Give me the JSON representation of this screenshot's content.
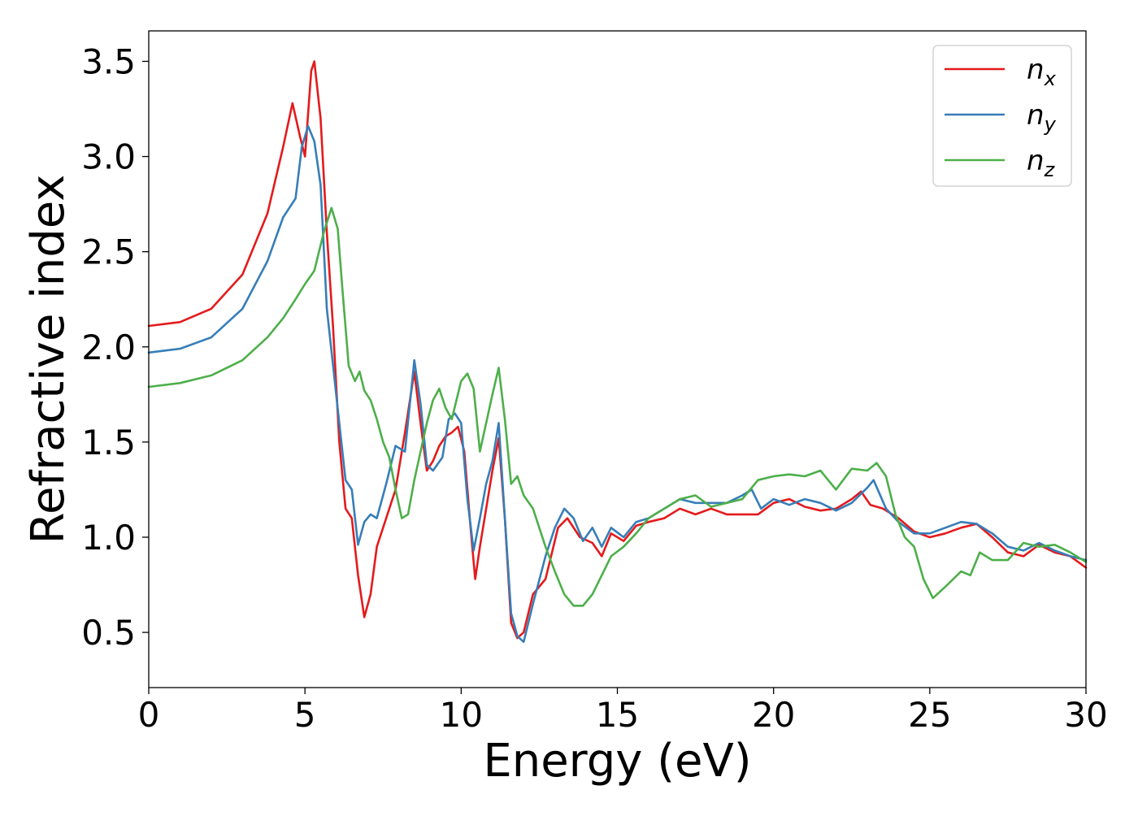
{
  "chart_data": {
    "type": "line",
    "title": "",
    "xlabel": "Energy (eV)",
    "ylabel": "Refractive index",
    "xlim": [
      0,
      30
    ],
    "ylim": [
      0.21,
      3.66
    ],
    "xticks": [
      0,
      5,
      10,
      15,
      20,
      25,
      30
    ],
    "xtick_labels": [
      "0",
      "5",
      "10",
      "15",
      "20",
      "25",
      "30"
    ],
    "yticks": [
      0.5,
      1.0,
      1.5,
      2.0,
      2.5,
      3.0,
      3.5
    ],
    "ytick_labels": [
      "0.5",
      "1.0",
      "1.5",
      "2.0",
      "2.5",
      "3.0",
      "3.5"
    ],
    "grid": false,
    "legend_position": "top-right",
    "series": [
      {
        "name": "n_x",
        "label_main": "n",
        "label_sub": "x",
        "color": "#e41a1c",
        "points": [
          [
            0,
            2.11
          ],
          [
            1,
            2.13
          ],
          [
            2,
            2.2
          ],
          [
            3,
            2.38
          ],
          [
            3.8,
            2.7
          ],
          [
            4.3,
            3.05
          ],
          [
            4.6,
            3.28
          ],
          [
            4.85,
            3.1
          ],
          [
            5.0,
            3.0
          ],
          [
            5.2,
            3.45
          ],
          [
            5.3,
            3.5
          ],
          [
            5.5,
            3.2
          ],
          [
            5.7,
            2.6
          ],
          [
            5.9,
            2.1
          ],
          [
            6.1,
            1.5
          ],
          [
            6.3,
            1.15
          ],
          [
            6.5,
            1.1
          ],
          [
            6.7,
            0.8
          ],
          [
            6.9,
            0.58
          ],
          [
            7.1,
            0.7
          ],
          [
            7.3,
            0.95
          ],
          [
            7.6,
            1.1
          ],
          [
            7.9,
            1.25
          ],
          [
            8.2,
            1.55
          ],
          [
            8.5,
            1.87
          ],
          [
            8.7,
            1.6
          ],
          [
            8.9,
            1.35
          ],
          [
            9.1,
            1.4
          ],
          [
            9.3,
            1.48
          ],
          [
            9.5,
            1.53
          ],
          [
            9.7,
            1.55
          ],
          [
            9.9,
            1.58
          ],
          [
            10.1,
            1.45
          ],
          [
            10.3,
            1.05
          ],
          [
            10.45,
            0.78
          ],
          [
            10.6,
            0.95
          ],
          [
            10.8,
            1.15
          ],
          [
            11.0,
            1.35
          ],
          [
            11.2,
            1.52
          ],
          [
            11.4,
            1.1
          ],
          [
            11.6,
            0.55
          ],
          [
            11.8,
            0.47
          ],
          [
            12.0,
            0.5
          ],
          [
            12.3,
            0.7
          ],
          [
            12.7,
            0.78
          ],
          [
            13.1,
            1.05
          ],
          [
            13.4,
            1.1
          ],
          [
            13.8,
            1.0
          ],
          [
            14.2,
            0.97
          ],
          [
            14.5,
            0.9
          ],
          [
            14.8,
            1.02
          ],
          [
            15.2,
            0.98
          ],
          [
            15.6,
            1.06
          ],
          [
            16.0,
            1.08
          ],
          [
            16.5,
            1.1
          ],
          [
            17.0,
            1.15
          ],
          [
            17.5,
            1.12
          ],
          [
            18.0,
            1.15
          ],
          [
            18.5,
            1.12
          ],
          [
            19.0,
            1.12
          ],
          [
            19.5,
            1.12
          ],
          [
            20.0,
            1.18
          ],
          [
            20.5,
            1.2
          ],
          [
            21.0,
            1.16
          ],
          [
            21.5,
            1.14
          ],
          [
            22.0,
            1.15
          ],
          [
            22.5,
            1.2
          ],
          [
            22.8,
            1.24
          ],
          [
            23.1,
            1.17
          ],
          [
            23.5,
            1.15
          ],
          [
            24.0,
            1.1
          ],
          [
            24.5,
            1.03
          ],
          [
            25.0,
            1.0
          ],
          [
            25.5,
            1.02
          ],
          [
            26.0,
            1.05
          ],
          [
            26.5,
            1.07
          ],
          [
            27.0,
            1.0
          ],
          [
            27.5,
            0.92
          ],
          [
            28.0,
            0.9
          ],
          [
            28.5,
            0.96
          ],
          [
            29.0,
            0.92
          ],
          [
            29.5,
            0.9
          ],
          [
            30.0,
            0.84
          ]
        ]
      },
      {
        "name": "n_y",
        "label_main": "n",
        "label_sub": "y",
        "color": "#377eb8",
        "points": [
          [
            0,
            1.97
          ],
          [
            1,
            1.99
          ],
          [
            2,
            2.05
          ],
          [
            3,
            2.2
          ],
          [
            3.8,
            2.45
          ],
          [
            4.3,
            2.68
          ],
          [
            4.5,
            2.73
          ],
          [
            4.7,
            2.78
          ],
          [
            4.9,
            3.05
          ],
          [
            5.1,
            3.16
          ],
          [
            5.3,
            3.08
          ],
          [
            5.5,
            2.85
          ],
          [
            5.7,
            2.2
          ],
          [
            5.9,
            1.9
          ],
          [
            6.1,
            1.6
          ],
          [
            6.3,
            1.3
          ],
          [
            6.5,
            1.25
          ],
          [
            6.7,
            0.96
          ],
          [
            6.9,
            1.08
          ],
          [
            7.1,
            1.12
          ],
          [
            7.3,
            1.1
          ],
          [
            7.6,
            1.28
          ],
          [
            7.9,
            1.48
          ],
          [
            8.2,
            1.45
          ],
          [
            8.5,
            1.93
          ],
          [
            8.7,
            1.7
          ],
          [
            8.9,
            1.38
          ],
          [
            9.1,
            1.35
          ],
          [
            9.4,
            1.42
          ],
          [
            9.6,
            1.62
          ],
          [
            9.8,
            1.65
          ],
          [
            10.0,
            1.6
          ],
          [
            10.2,
            1.2
          ],
          [
            10.4,
            0.93
          ],
          [
            10.6,
            1.1
          ],
          [
            10.8,
            1.28
          ],
          [
            11.0,
            1.4
          ],
          [
            11.2,
            1.6
          ],
          [
            11.4,
            1.1
          ],
          [
            11.6,
            0.6
          ],
          [
            11.8,
            0.48
          ],
          [
            12.0,
            0.45
          ],
          [
            12.3,
            0.65
          ],
          [
            12.7,
            0.9
          ],
          [
            13.0,
            1.05
          ],
          [
            13.3,
            1.15
          ],
          [
            13.6,
            1.1
          ],
          [
            13.9,
            0.98
          ],
          [
            14.2,
            1.05
          ],
          [
            14.5,
            0.95
          ],
          [
            14.8,
            1.05
          ],
          [
            15.2,
            1.0
          ],
          [
            15.6,
            1.08
          ],
          [
            16.0,
            1.1
          ],
          [
            16.5,
            1.15
          ],
          [
            17.0,
            1.2
          ],
          [
            17.5,
            1.18
          ],
          [
            18.0,
            1.18
          ],
          [
            18.5,
            1.18
          ],
          [
            19.0,
            1.22
          ],
          [
            19.3,
            1.25
          ],
          [
            19.6,
            1.15
          ],
          [
            20.0,
            1.2
          ],
          [
            20.5,
            1.17
          ],
          [
            21.0,
            1.2
          ],
          [
            21.5,
            1.18
          ],
          [
            22.0,
            1.14
          ],
          [
            22.5,
            1.18
          ],
          [
            23.0,
            1.26
          ],
          [
            23.2,
            1.3
          ],
          [
            23.6,
            1.15
          ],
          [
            24.0,
            1.08
          ],
          [
            24.5,
            1.02
          ],
          [
            25.0,
            1.02
          ],
          [
            25.5,
            1.05
          ],
          [
            26.0,
            1.08
          ],
          [
            26.5,
            1.07
          ],
          [
            27.0,
            1.02
          ],
          [
            27.5,
            0.95
          ],
          [
            28.0,
            0.93
          ],
          [
            28.5,
            0.97
          ],
          [
            29.0,
            0.93
          ],
          [
            29.5,
            0.9
          ],
          [
            30.0,
            0.88
          ]
        ]
      },
      {
        "name": "n_z",
        "label_main": "n",
        "label_sub": "z",
        "color": "#4daf4a",
        "points": [
          [
            0,
            1.79
          ],
          [
            1,
            1.81
          ],
          [
            2,
            1.85
          ],
          [
            3,
            1.93
          ],
          [
            3.8,
            2.05
          ],
          [
            4.3,
            2.15
          ],
          [
            4.7,
            2.25
          ],
          [
            5.0,
            2.33
          ],
          [
            5.3,
            2.4
          ],
          [
            5.6,
            2.6
          ],
          [
            5.85,
            2.73
          ],
          [
            6.05,
            2.62
          ],
          [
            6.2,
            2.3
          ],
          [
            6.4,
            1.9
          ],
          [
            6.6,
            1.82
          ],
          [
            6.75,
            1.87
          ],
          [
            6.9,
            1.77
          ],
          [
            7.1,
            1.72
          ],
          [
            7.3,
            1.62
          ],
          [
            7.5,
            1.5
          ],
          [
            7.7,
            1.42
          ],
          [
            7.9,
            1.25
          ],
          [
            8.1,
            1.1
          ],
          [
            8.3,
            1.12
          ],
          [
            8.5,
            1.3
          ],
          [
            8.7,
            1.45
          ],
          [
            8.9,
            1.6
          ],
          [
            9.1,
            1.72
          ],
          [
            9.3,
            1.78
          ],
          [
            9.5,
            1.68
          ],
          [
            9.7,
            1.62
          ],
          [
            10.0,
            1.82
          ],
          [
            10.2,
            1.86
          ],
          [
            10.4,
            1.78
          ],
          [
            10.6,
            1.45
          ],
          [
            10.8,
            1.6
          ],
          [
            11.0,
            1.75
          ],
          [
            11.2,
            1.89
          ],
          [
            11.4,
            1.62
          ],
          [
            11.6,
            1.28
          ],
          [
            11.8,
            1.32
          ],
          [
            12.0,
            1.22
          ],
          [
            12.3,
            1.15
          ],
          [
            12.7,
            0.95
          ],
          [
            13.0,
            0.82
          ],
          [
            13.3,
            0.7
          ],
          [
            13.6,
            0.64
          ],
          [
            13.9,
            0.64
          ],
          [
            14.2,
            0.7
          ],
          [
            14.5,
            0.8
          ],
          [
            14.8,
            0.9
          ],
          [
            15.2,
            0.95
          ],
          [
            15.6,
            1.02
          ],
          [
            16.0,
            1.1
          ],
          [
            16.5,
            1.15
          ],
          [
            17.0,
            1.2
          ],
          [
            17.5,
            1.22
          ],
          [
            18.0,
            1.16
          ],
          [
            18.5,
            1.18
          ],
          [
            19.0,
            1.2
          ],
          [
            19.5,
            1.3
          ],
          [
            20.0,
            1.32
          ],
          [
            20.5,
            1.33
          ],
          [
            21.0,
            1.32
          ],
          [
            21.5,
            1.35
          ],
          [
            22.0,
            1.25
          ],
          [
            22.5,
            1.36
          ],
          [
            23.0,
            1.35
          ],
          [
            23.3,
            1.39
          ],
          [
            23.6,
            1.32
          ],
          [
            23.9,
            1.12
          ],
          [
            24.2,
            1.0
          ],
          [
            24.5,
            0.95
          ],
          [
            24.8,
            0.78
          ],
          [
            25.1,
            0.68
          ],
          [
            25.5,
            0.74
          ],
          [
            26.0,
            0.82
          ],
          [
            26.3,
            0.8
          ],
          [
            26.6,
            0.92
          ],
          [
            27.0,
            0.88
          ],
          [
            27.5,
            0.88
          ],
          [
            28.0,
            0.97
          ],
          [
            28.5,
            0.95
          ],
          [
            29.0,
            0.96
          ],
          [
            29.5,
            0.92
          ],
          [
            30.0,
            0.87
          ]
        ]
      }
    ]
  }
}
